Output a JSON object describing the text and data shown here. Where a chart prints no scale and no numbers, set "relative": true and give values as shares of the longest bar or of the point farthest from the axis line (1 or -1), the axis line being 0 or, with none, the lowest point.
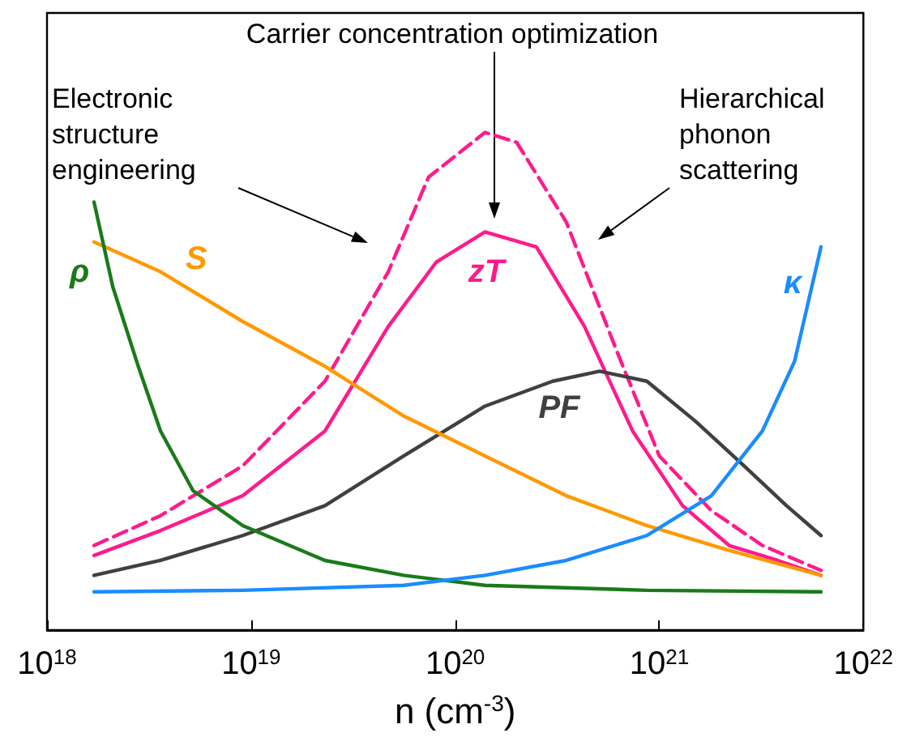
{
  "chart_data": {
    "type": "line",
    "relative": true,
    "log": "x",
    "marker": "none",
    "xlabel": "n (cm$^{-3}$)",
    "xlim": [
      1e+18,
      1e+22
    ],
    "xticks": [
      {
        "value": 1e+18,
        "label": "10$^{18}$"
      },
      {
        "value": 1e+19,
        "label": "10$^{19}$"
      },
      {
        "value": 1e+20,
        "label": "10$^{20}$"
      },
      {
        "value": 1e+21,
        "label": "10$^{21}$"
      },
      {
        "value": 1e+22,
        "label": "10$^{22}$"
      }
    ],
    "series": [
      {
        "color": "#ff1a8c",
        "line_style": "dashed",
        "x": [
          1.7e+18,
          3.6e+18,
          9.1e+18,
          2.3e+19,
          4.7e+19,
          7.4e+19,
          1.4e+20,
          2e+20,
          3.5e+20,
          6.2e+20,
          1e+21,
          1.8e+21,
          3.2e+21,
          6.2e+21
        ],
        "values": [
          0.17,
          0.23,
          0.33,
          0.5,
          0.72,
          0.91,
          1.0,
          0.98,
          0.82,
          0.56,
          0.35,
          0.24,
          0.17,
          0.12
        ]
      },
      {
        "name": "zT",
        "color": "#ff1a8c",
        "x": [
          1.7e+18,
          3.6e+18,
          9.1e+18,
          2.3e+19,
          4.7e+19,
          8.1e+19,
          1.4e+20,
          2.5e+20,
          4.3e+20,
          7.4e+20,
          1.3e+21,
          2.2e+21,
          3.8e+21,
          6.2e+21
        ],
        "values": [
          0.15,
          0.2,
          0.27,
          0.4,
          0.61,
          0.74,
          0.8,
          0.77,
          0.61,
          0.4,
          0.25,
          0.17,
          0.14,
          0.11
        ]
      },
      {
        "name": "PF",
        "color": "#404040",
        "x": [
          1.7e+18,
          3.6e+18,
          9.1e+18,
          2.3e+19,
          5.6e+19,
          1.4e+20,
          3e+20,
          5.1e+20,
          8.7e+20,
          1.5e+21,
          2.6e+21,
          4.2e+21,
          6.2e+21
        ],
        "values": [
          0.11,
          0.14,
          0.19,
          0.25,
          0.35,
          0.45,
          0.5,
          0.52,
          0.5,
          0.42,
          0.33,
          0.25,
          0.19
        ]
      },
      {
        "name": "S",
        "color": "#ff9900",
        "x": [
          1.7e+18,
          3.6e+18,
          9.1e+18,
          2.3e+19,
          5.6e+19,
          1.4e+20,
          3.5e+20,
          8.7e+20,
          2.2e+21,
          6.2e+21
        ],
        "values": [
          0.78,
          0.72,
          0.62,
          0.53,
          0.43,
          0.35,
          0.27,
          0.21,
          0.16,
          0.11
        ]
      },
      {
        "name": "ρ",
        "color": "#1a7a1a",
        "x": [
          1.7e+18,
          2.1e+18,
          2.8e+18,
          3.6e+18,
          5.2e+18,
          9.1e+18,
          2.3e+19,
          5.6e+19,
          1.4e+20,
          8.7e+20,
          6.2e+21
        ],
        "values": [
          0.86,
          0.69,
          0.53,
          0.4,
          0.28,
          0.21,
          0.14,
          0.11,
          0.09,
          0.08,
          0.077
        ]
      },
      {
        "name": "κ",
        "color": "#1a8cff",
        "x": [
          1.7e+18,
          9.1e+18,
          5.6e+19,
          1.4e+20,
          3.5e+20,
          8.7e+20,
          1.8e+21,
          3.2e+21,
          4.6e+21,
          6.2e+21
        ],
        "values": [
          0.077,
          0.08,
          0.09,
          0.11,
          0.14,
          0.19,
          0.27,
          0.4,
          0.54,
          0.77
        ]
      }
    ],
    "annotations": [
      "Electronic structure engineering",
      "Carrier concentration optimization",
      "Hierarchical phonon scattering"
    ]
  }
}
